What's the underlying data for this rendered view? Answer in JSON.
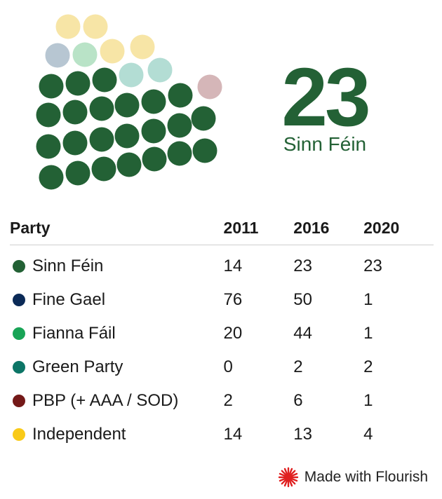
{
  "chart_data": {
    "type": "table",
    "highlight": {
      "value": "23",
      "label": "Sinn Féin",
      "color": "#236135"
    },
    "columns": [
      "Party",
      "2011",
      "2016",
      "2020"
    ],
    "rows": [
      {
        "party": "Sinn Féin",
        "color": "#236135",
        "values": [
          "14",
          "23",
          "23"
        ]
      },
      {
        "party": "Fine Gael",
        "color": "#0b2a57",
        "values": [
          "76",
          "50",
          "1"
        ]
      },
      {
        "party": "Fianna Fáil",
        "color": "#18a456",
        "values": [
          "20",
          "44",
          "1"
        ]
      },
      {
        "party": "Green Party",
        "color": "#0c7566",
        "values": [
          "0",
          "2",
          "2"
        ]
      },
      {
        "party": "PBP (+ AAA / SOD)",
        "color": "#741918",
        "values": [
          "2",
          "6",
          "1"
        ]
      },
      {
        "party": "Independent",
        "color": "#f9ca18",
        "values": [
          "14",
          "13",
          "4"
        ]
      }
    ],
    "seats": [
      {
        "group": "Sinn Féin",
        "count": 23,
        "color": "#236135"
      },
      {
        "group": "Green Party",
        "count": 2,
        "color": "#b3ddd4"
      },
      {
        "group": "Fianna Fáil",
        "count": 1,
        "color": "#b9e3c7"
      },
      {
        "group": "Fine Gael",
        "count": 1,
        "color": "#b7c6d2"
      },
      {
        "group": "Independent",
        "count": 4,
        "color": "#f7e5a6"
      },
      {
        "group": "PBP (+ AAA / SOD)",
        "count": 1,
        "color": "#d5b6b8"
      }
    ]
  },
  "footer": {
    "label": "Made with Flourish",
    "icon": "flourish-logo-icon",
    "icon_color": "#e02020"
  }
}
